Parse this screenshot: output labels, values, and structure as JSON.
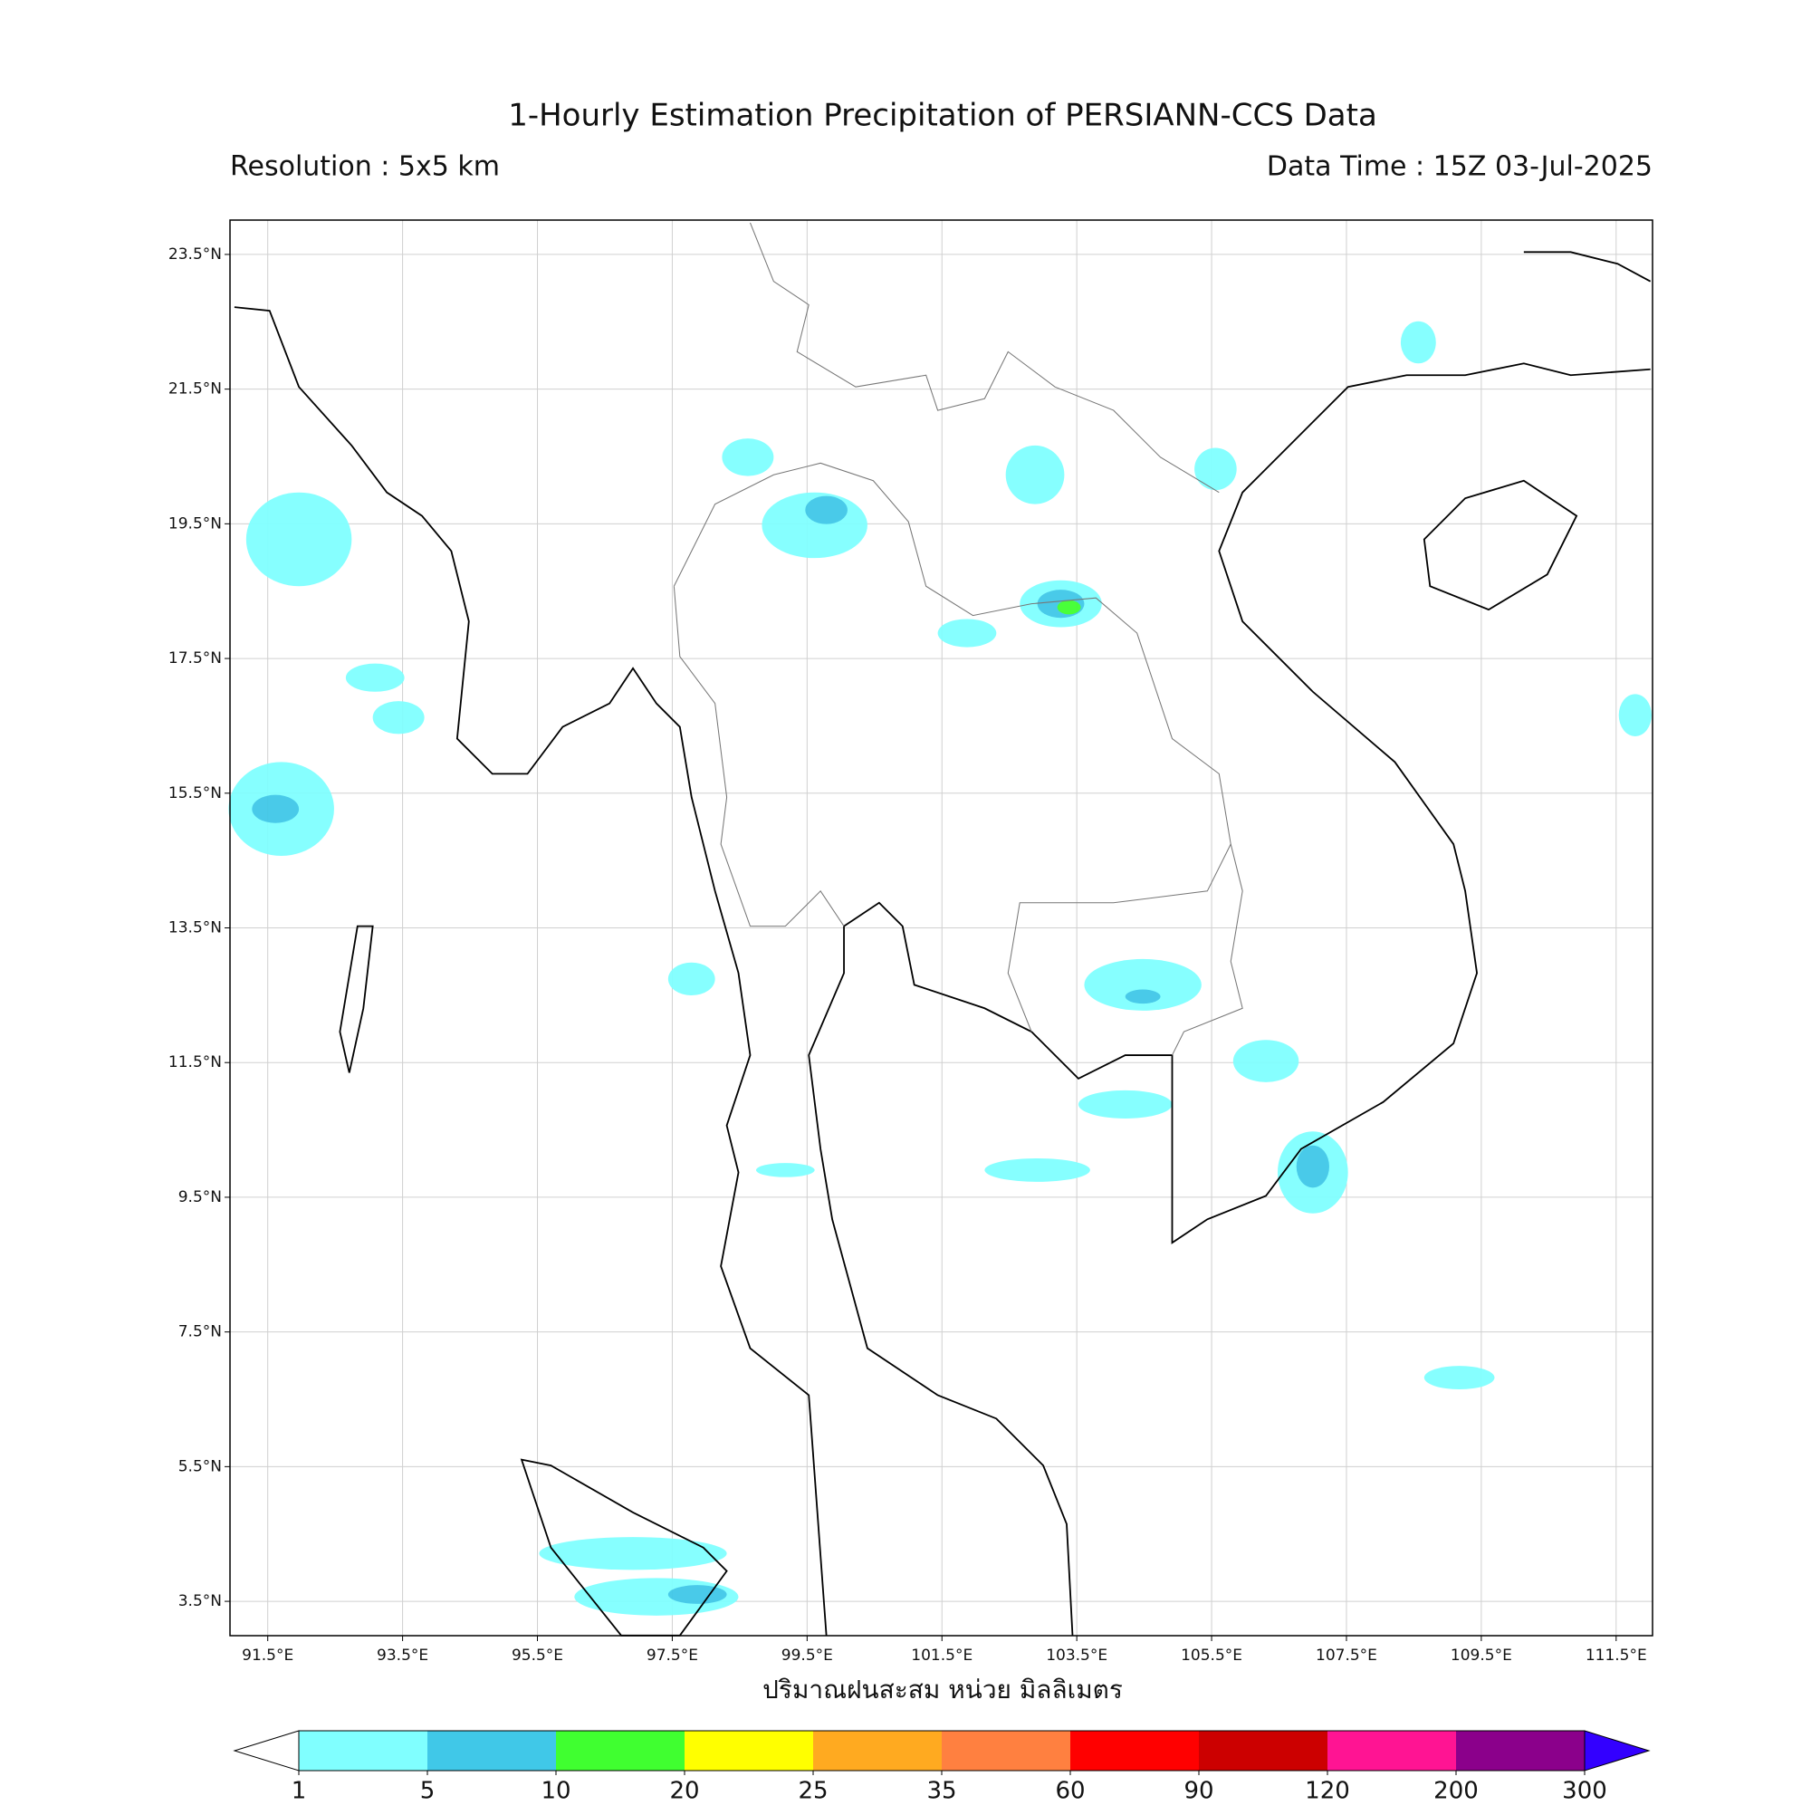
{
  "chart_data": {
    "type": "map",
    "title": "1-Hourly Estimation Precipitation of PERSIANN-CCS Data",
    "subtitle_left": "Resolution : 5x5 km",
    "subtitle_right": "Data Time : 15Z 03-Jul-2025",
    "xlim": [
      90.94,
      112.04
    ],
    "ylim": [
      2.99,
      24.01
    ],
    "xticks": [
      {
        "value": 91.5,
        "label": "91.5°E"
      },
      {
        "value": 93.5,
        "label": "93.5°E"
      },
      {
        "value": 95.5,
        "label": "95.5°E"
      },
      {
        "value": 97.5,
        "label": "97.5°E"
      },
      {
        "value": 99.5,
        "label": "99.5°E"
      },
      {
        "value": 101.5,
        "label": "101.5°E"
      },
      {
        "value": 103.5,
        "label": "103.5°E"
      },
      {
        "value": 105.5,
        "label": "105.5°E"
      },
      {
        "value": 107.5,
        "label": "107.5°E"
      },
      {
        "value": 109.5,
        "label": "109.5°E"
      },
      {
        "value": 111.5,
        "label": "111.5°E"
      }
    ],
    "yticks": [
      {
        "value": 23.5,
        "label": "23.5°N"
      },
      {
        "value": 21.5,
        "label": "21.5°N"
      },
      {
        "value": 19.5,
        "label": "19.5°N"
      },
      {
        "value": 17.5,
        "label": "17.5°N"
      },
      {
        "value": 15.5,
        "label": "15.5°N"
      },
      {
        "value": 13.5,
        "label": "13.5°N"
      },
      {
        "value": 11.5,
        "label": "11.5°N"
      },
      {
        "value": 9.5,
        "label": "9.5°N"
      },
      {
        "value": 7.5,
        "label": "7.5°N"
      },
      {
        "value": 5.5,
        "label": "5.5°N"
      },
      {
        "value": 3.5,
        "label": "3.5°N"
      }
    ],
    "grid": true,
    "colorbar": {
      "label": "ปริมาณฝนสะสม หน่วย มิลลิเมตร",
      "levels": [
        1,
        5,
        10,
        20,
        25,
        35,
        60,
        90,
        120,
        200,
        300
      ],
      "colors": [
        "#80ffff",
        "#40c8e8",
        "#40ff30",
        "#ffff00",
        "#ffaa20",
        "#ff8040",
        "#ff0000",
        "#cc0000",
        "#ff1493",
        "#8b008b"
      ],
      "under_color": "#ffffff",
      "over_color": "#3300ff"
    }
  }
}
